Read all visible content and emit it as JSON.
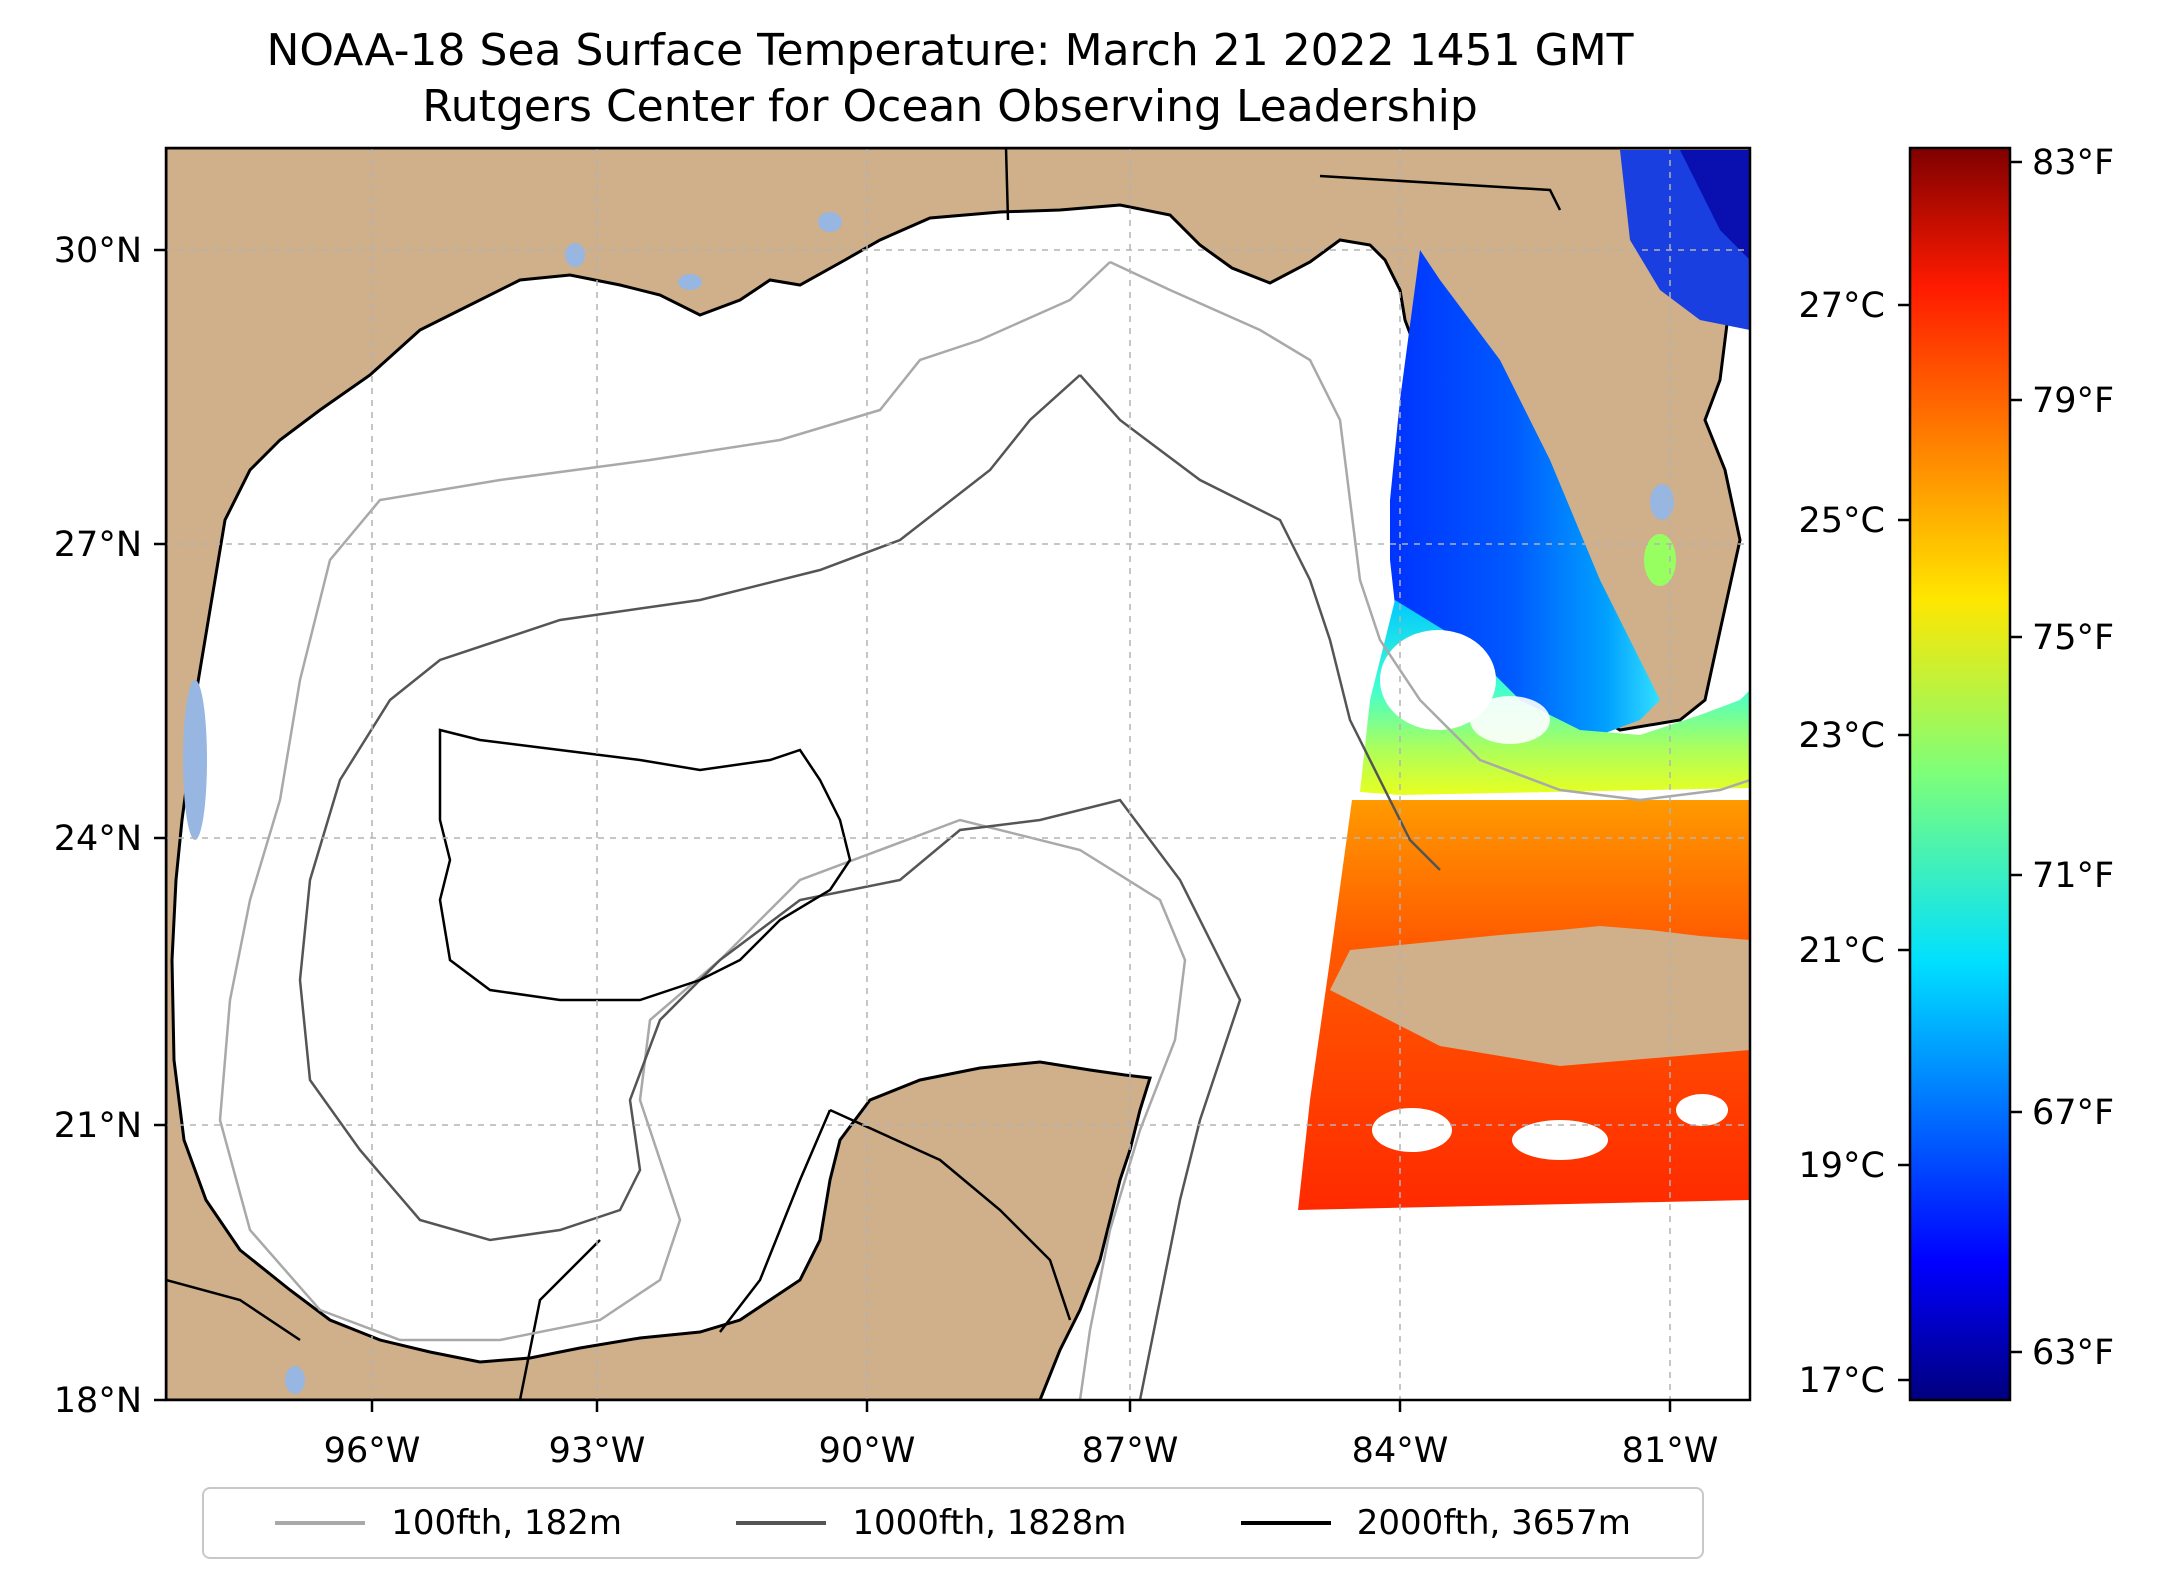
{
  "title": {
    "line1": "NOAA-18 Sea Surface Temperature: March 21 2022 1451 GMT",
    "line2": "Rutgers Center for Ocean Observing Leadership"
  },
  "map": {
    "lon_range": [
      -98.3,
      -80.7
    ],
    "lat_range": [
      18.0,
      30.8
    ],
    "lon_ticks": [
      "96°W",
      "93°W",
      "90°W",
      "87°W",
      "84°W",
      "81°W"
    ],
    "lat_ticks": [
      "18°N",
      "21°N",
      "24°N",
      "27°N",
      "30°N"
    ],
    "gridlines": true,
    "land_color": "#cfb08a",
    "water_color": "#ffffff",
    "lake_color": "#97b6e1"
  },
  "legend": {
    "placement": "bottom-center",
    "entries": [
      {
        "label": "100fth, 182m",
        "color": "#a9a9a9"
      },
      {
        "label": "1000fth, 1828m",
        "color": "#555555"
      },
      {
        "label": "2000fth, 3657m",
        "color": "#000000"
      }
    ]
  },
  "colorbar": {
    "colormap": "jet",
    "range_c": [
      16.8,
      28.8
    ],
    "celsius_labels": [
      "27°C",
      "25°C",
      "23°C",
      "21°C",
      "19°C",
      "17°C"
    ],
    "fahrenheit_labels": [
      "83°F",
      "79°F",
      "75°F",
      "71°F",
      "67°F",
      "63°F"
    ]
  }
}
